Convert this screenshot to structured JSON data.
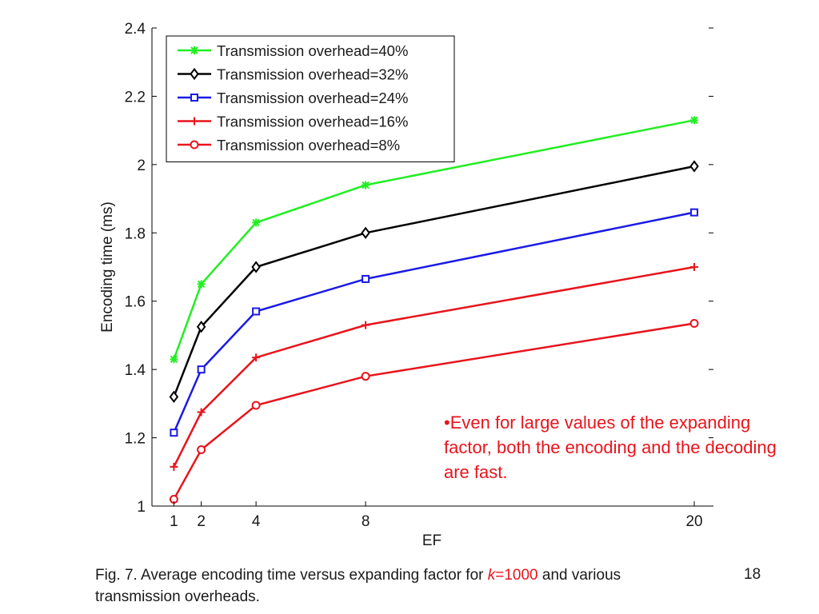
{
  "colors": {
    "green": "#22ee22",
    "black": "#000000",
    "blue": "#1a1ae6",
    "red": "#e8141c",
    "annotation": "#e8141c"
  },
  "chart_data": {
    "type": "line",
    "xlabel": "EF",
    "ylabel": "Encoding time (ms)",
    "x": [
      1,
      2,
      4,
      8,
      20
    ],
    "x_tick_labels": [
      "1",
      "2",
      "4",
      "8",
      "20"
    ],
    "ylim": [
      1,
      2.4
    ],
    "y_ticks": [
      1,
      1.2,
      1.4,
      1.6,
      1.8,
      2,
      2.2,
      2.4
    ],
    "y_tick_labels": [
      "1",
      "1.2",
      "1.4",
      "1.6",
      "1.8",
      "2",
      "2.2",
      "2.4"
    ],
    "grid": false,
    "legend_position": "top-left",
    "series": [
      {
        "name": "Transmission overhead=40%",
        "color": "#22ee22",
        "marker": "star",
        "values": [
          1.43,
          1.65,
          1.83,
          1.94,
          2.13
        ]
      },
      {
        "name": "Transmission overhead=32%",
        "color": "#000000",
        "marker": "diamond",
        "values": [
          1.32,
          1.525,
          1.7,
          1.8,
          1.995
        ]
      },
      {
        "name": "Transmission overhead=24%",
        "color": "#1a1ae6",
        "marker": "square",
        "values": [
          1.215,
          1.4,
          1.57,
          1.665,
          1.86
        ]
      },
      {
        "name": "Transmission overhead=16%",
        "color": "#e8141c",
        "marker": "plus",
        "values": [
          1.115,
          1.275,
          1.435,
          1.53,
          1.7
        ]
      },
      {
        "name": "Transmission overhead=8%",
        "color": "#e8141c",
        "marker": "circle",
        "values": [
          1.02,
          1.165,
          1.295,
          1.38,
          1.535
        ]
      }
    ]
  },
  "annotation": "•Even for large values of the expanding factor, both the encoding and the decoding are fast.",
  "caption": {
    "text_before": "Fig. 7. Average encoding time versus expanding factor for ",
    "k_symbol": "k",
    "k_value": "=1000",
    "text_after": " and various transmission overheads."
  },
  "page_number": "18"
}
